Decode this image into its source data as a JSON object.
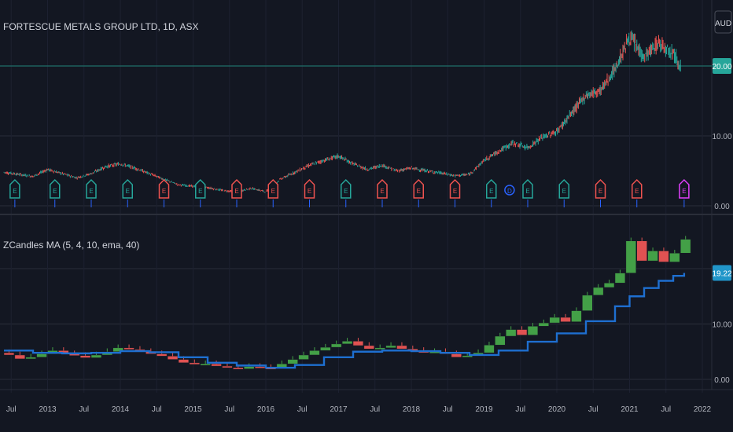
{
  "header": {
    "title": "FORTESCUE METALS GROUP LTD, 1D, ASX",
    "currency": "AUD",
    "indicator_label": "ZCandles MA (5, 4, 10, ema, 40)"
  },
  "colors": {
    "background": "#131722",
    "grid": "#2a2e39",
    "up": "#26a69a",
    "down": "#ef5350",
    "z_up": "#43a047",
    "z_down": "#e05252",
    "ma": "#1e6fd0",
    "price_line": "#1f6f68",
    "price_badge": "#26a69a",
    "ma_badge": "#2196c9"
  },
  "chart_data": [
    {
      "type": "line",
      "title": "FORTESCUE METALS GROUP LTD, 1D, ASX",
      "yunit": "AUD",
      "ytick_labels": [
        "20.00",
        "10.00",
        "0.00"
      ],
      "yticks": [
        20,
        10,
        0
      ],
      "current_price_label": "20.00",
      "x": [
        2012.4,
        2012.6,
        2012.8,
        2013.0,
        2013.2,
        2013.4,
        2013.6,
        2013.8,
        2014.0,
        2014.2,
        2014.4,
        2014.6,
        2014.8,
        2015.0,
        2015.2,
        2015.4,
        2015.6,
        2015.8,
        2016.0,
        2016.2,
        2016.4,
        2016.6,
        2016.8,
        2017.0,
        2017.2,
        2017.4,
        2017.6,
        2017.8,
        2018.0,
        2018.2,
        2018.4,
        2018.6,
        2018.8,
        2019.0,
        2019.2,
        2019.4,
        2019.6,
        2019.8,
        2020.0,
        2020.2,
        2020.4,
        2020.6,
        2020.8,
        2021.0,
        2021.2,
        2021.4,
        2021.6,
        2021.7
      ],
      "values": [
        4.8,
        4.5,
        4.2,
        5.2,
        4.6,
        4.0,
        4.6,
        5.6,
        6.0,
        5.4,
        4.6,
        3.8,
        3.0,
        2.8,
        2.6,
        2.2,
        2.0,
        2.5,
        2.0,
        3.8,
        4.8,
        5.8,
        6.5,
        7.1,
        6.0,
        5.2,
        5.8,
        5.0,
        5.4,
        5.0,
        4.7,
        4.3,
        4.5,
        6.5,
        7.8,
        9.0,
        8.3,
        9.8,
        10.6,
        13.2,
        15.8,
        16.5,
        19.5,
        24.2,
        21.2,
        23.3,
        22.0,
        20.0
      ],
      "events": [
        {
          "label": "E",
          "x": 2012.55,
          "kind": "up"
        },
        {
          "label": "E",
          "x": 2013.1,
          "kind": "up"
        },
        {
          "label": "E",
          "x": 2013.6,
          "kind": "up"
        },
        {
          "label": "E",
          "x": 2014.1,
          "kind": "up"
        },
        {
          "label": "E",
          "x": 2014.6,
          "kind": "down"
        },
        {
          "label": "E",
          "x": 2015.1,
          "kind": "up"
        },
        {
          "label": "E",
          "x": 2015.6,
          "kind": "down"
        },
        {
          "label": "E",
          "x": 2016.1,
          "kind": "down"
        },
        {
          "label": "E",
          "x": 2016.6,
          "kind": "down"
        },
        {
          "label": "E",
          "x": 2017.1,
          "kind": "up"
        },
        {
          "label": "E",
          "x": 2017.6,
          "kind": "down"
        },
        {
          "label": "E",
          "x": 2018.1,
          "kind": "down"
        },
        {
          "label": "E",
          "x": 2018.6,
          "kind": "down"
        },
        {
          "label": "E",
          "x": 2019.1,
          "kind": "up"
        },
        {
          "label": "D",
          "x": 2019.35,
          "kind": "div"
        },
        {
          "label": "E",
          "x": 2019.6,
          "kind": "up"
        },
        {
          "label": "E",
          "x": 2020.1,
          "kind": "up"
        },
        {
          "label": "E",
          "x": 2020.6,
          "kind": "down"
        },
        {
          "label": "E",
          "x": 2021.1,
          "kind": "down"
        },
        {
          "label": "E",
          "x": 2021.75,
          "kind": "pending"
        }
      ]
    },
    {
      "type": "bar",
      "title": "ZCandles MA (5, 4, 10, ema, 40)",
      "ytick_labels": [
        "10.00",
        "0.00"
      ],
      "yticks": [
        10,
        0
      ],
      "current_value_label": "19.22",
      "candles": [
        [
          2012.4,
          4.8,
          4.4
        ],
        [
          2012.55,
          4.4,
          3.7
        ],
        [
          2012.7,
          3.7,
          4.0
        ],
        [
          2012.85,
          4.0,
          4.6
        ],
        [
          2013.0,
          4.6,
          5.2
        ],
        [
          2013.15,
          5.2,
          4.6
        ],
        [
          2013.3,
          4.6,
          4.3
        ],
        [
          2013.45,
          4.3,
          3.9
        ],
        [
          2013.6,
          3.9,
          4.4
        ],
        [
          2013.75,
          4.4,
          5.0
        ],
        [
          2013.9,
          5.0,
          5.7
        ],
        [
          2014.05,
          5.7,
          5.4
        ],
        [
          2014.2,
          5.4,
          5.0
        ],
        [
          2014.35,
          5.0,
          4.6
        ],
        [
          2014.5,
          4.6,
          4.2
        ],
        [
          2014.65,
          4.2,
          3.6
        ],
        [
          2014.8,
          3.6,
          3.0
        ],
        [
          2014.95,
          3.0,
          2.7
        ],
        [
          2015.1,
          2.7,
          2.8
        ],
        [
          2015.25,
          2.8,
          2.4
        ],
        [
          2015.4,
          2.4,
          2.1
        ],
        [
          2015.55,
          2.1,
          1.9
        ],
        [
          2015.7,
          1.9,
          2.3
        ],
        [
          2015.85,
          2.3,
          2.1
        ],
        [
          2016.0,
          2.1,
          2.0
        ],
        [
          2016.15,
          2.0,
          2.8
        ],
        [
          2016.3,
          2.8,
          3.6
        ],
        [
          2016.45,
          3.6,
          4.4
        ],
        [
          2016.6,
          4.4,
          5.2
        ],
        [
          2016.75,
          5.2,
          5.8
        ],
        [
          2016.9,
          5.8,
          6.4
        ],
        [
          2017.05,
          6.4,
          6.9
        ],
        [
          2017.2,
          6.9,
          6.1
        ],
        [
          2017.35,
          6.1,
          5.5
        ],
        [
          2017.5,
          5.5,
          5.7
        ],
        [
          2017.65,
          5.7,
          6.1
        ],
        [
          2017.8,
          6.1,
          5.5
        ],
        [
          2017.95,
          5.5,
          5.2
        ],
        [
          2018.1,
          5.2,
          4.8
        ],
        [
          2018.25,
          4.8,
          5.0
        ],
        [
          2018.4,
          5.0,
          4.6
        ],
        [
          2018.55,
          4.6,
          4.0
        ],
        [
          2018.7,
          4.0,
          4.3
        ],
        [
          2018.85,
          4.3,
          4.8
        ],
        [
          2019.0,
          4.8,
          6.2
        ],
        [
          2019.15,
          6.2,
          7.8
        ],
        [
          2019.3,
          7.8,
          9.0
        ],
        [
          2019.45,
          9.0,
          8.0
        ],
        [
          2019.6,
          8.0,
          9.6
        ],
        [
          2019.75,
          9.6,
          10.2
        ],
        [
          2019.9,
          10.2,
          11.2
        ],
        [
          2020.05,
          11.2,
          10.4
        ],
        [
          2020.2,
          10.4,
          12.4
        ],
        [
          2020.35,
          12.4,
          15.2
        ],
        [
          2020.5,
          15.2,
          16.6
        ],
        [
          2020.65,
          16.6,
          17.4
        ],
        [
          2020.8,
          17.4,
          19.2
        ],
        [
          2020.95,
          19.2,
          25.0
        ],
        [
          2021.1,
          25.0,
          21.4
        ],
        [
          2021.25,
          21.4,
          23.2
        ],
        [
          2021.4,
          23.2,
          21.2
        ],
        [
          2021.55,
          21.2,
          22.8
        ],
        [
          2021.7,
          22.8,
          25.3
        ]
      ],
      "ma": {
        "x": [
          2012.4,
          2012.8,
          2013.2,
          2013.6,
          2014.0,
          2014.4,
          2014.8,
          2015.2,
          2015.6,
          2016.0,
          2016.4,
          2016.8,
          2017.2,
          2017.6,
          2018.0,
          2018.4,
          2018.8,
          2019.2,
          2019.6,
          2020.0,
          2020.4,
          2020.8,
          2021.0,
          2021.2,
          2021.4,
          2021.6,
          2021.75
        ],
        "values": [
          5.2,
          4.8,
          4.7,
          4.8,
          5.1,
          4.9,
          4.0,
          3.0,
          2.5,
          2.1,
          2.6,
          4.0,
          5.0,
          5.2,
          5.1,
          4.8,
          4.4,
          5.2,
          6.8,
          8.3,
          10.5,
          13.2,
          15.0,
          16.5,
          17.8,
          18.7,
          19.22
        ]
      }
    }
  ],
  "xaxis": {
    "labels": [
      {
        "text": "Jul",
        "x": 2012.5
      },
      {
        "text": "2013",
        "x": 2013.0
      },
      {
        "text": "Jul",
        "x": 2013.5
      },
      {
        "text": "2014",
        "x": 2014.0
      },
      {
        "text": "Jul",
        "x": 2014.5
      },
      {
        "text": "2015",
        "x": 2015.0
      },
      {
        "text": "Jul",
        "x": 2015.5
      },
      {
        "text": "2016",
        "x": 2016.0
      },
      {
        "text": "Jul",
        "x": 2016.5
      },
      {
        "text": "2017",
        "x": 2017.0
      },
      {
        "text": "Jul",
        "x": 2017.5
      },
      {
        "text": "2018",
        "x": 2018.0
      },
      {
        "text": "Jul",
        "x": 2018.5
      },
      {
        "text": "2019",
        "x": 2019.0
      },
      {
        "text": "Jul",
        "x": 2019.5
      },
      {
        "text": "2020",
        "x": 2020.0
      },
      {
        "text": "Jul",
        "x": 2020.5
      },
      {
        "text": "2021",
        "x": 2021.0
      },
      {
        "text": "Jul",
        "x": 2021.5
      },
      {
        "text": "2022",
        "x": 2022.0
      }
    ]
  }
}
